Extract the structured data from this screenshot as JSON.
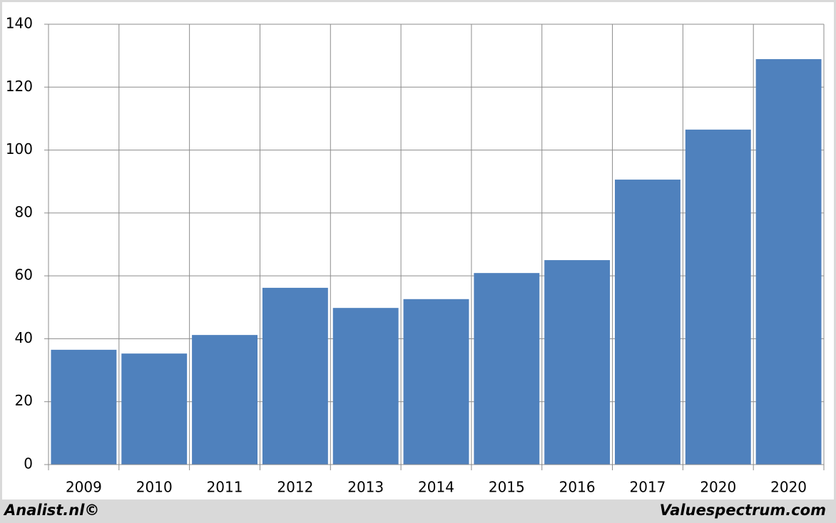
{
  "chart_data": {
    "type": "bar",
    "categories": [
      "2009",
      "2010",
      "2011",
      "2012",
      "2013",
      "2014",
      "2015",
      "2016",
      "2017",
      "2020",
      "2020"
    ],
    "values": [
      36.5,
      35.3,
      41.2,
      56.2,
      49.8,
      52.6,
      60.9,
      65.0,
      90.6,
      106.5,
      128.9
    ],
    "color": "#4f81bd",
    "ylim": [
      0,
      140
    ],
    "yticks": [
      0,
      20,
      40,
      60,
      80,
      100,
      120,
      140
    ],
    "grid": true,
    "footer_left": "Analist.nl©",
    "footer_right": "Valuespectrum.com"
  }
}
